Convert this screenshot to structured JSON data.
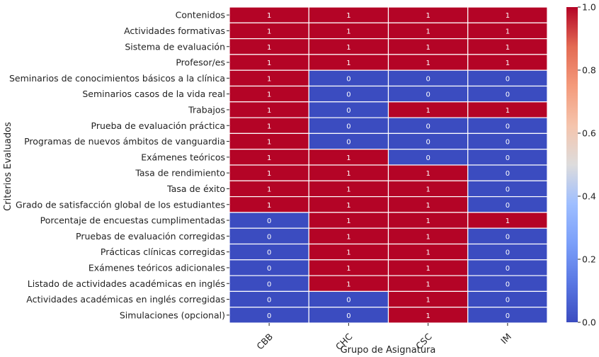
{
  "chart_data": {
    "type": "heatmap",
    "title": "",
    "xlabel": "Grupo de Asignatura",
    "ylabel": "Criterios Evaluados",
    "x_categories": [
      "CBB",
      "CHC",
      "CSC",
      "IM"
    ],
    "y_categories": [
      "Contenidos",
      "Actividades formativas",
      "Sistema de evaluación",
      "Profesor/es",
      "Seminarios de conocimientos básicos a la clínica",
      "Seminarios casos de la vida real",
      "Trabajos",
      "Prueba de evaluación práctica",
      "Programas de nuevos ámbitos de vanguardia",
      "Exámenes teóricos",
      "Tasa de rendimiento",
      "Tasa de éxito",
      "Grado de satisfacción global de los estudiantes",
      "Porcentaje de encuestas cumplimentadas",
      "Pruebas de evaluación corregidas",
      "Prácticas clínicas corregidas",
      "Exámenes teóricos adicionales",
      "Listado de actividades académicas en inglés",
      "Actividades académicas en inglés corregidas",
      "Simulaciones (opcional)"
    ],
    "values": [
      [
        1,
        1,
        1,
        1
      ],
      [
        1,
        1,
        1,
        1
      ],
      [
        1,
        1,
        1,
        1
      ],
      [
        1,
        1,
        1,
        1
      ],
      [
        1,
        0,
        0,
        0
      ],
      [
        1,
        0,
        0,
        0
      ],
      [
        1,
        0,
        1,
        1
      ],
      [
        1,
        0,
        0,
        0
      ],
      [
        1,
        0,
        0,
        0
      ],
      [
        1,
        1,
        0,
        0
      ],
      [
        1,
        1,
        1,
        0
      ],
      [
        1,
        1,
        1,
        0
      ],
      [
        1,
        1,
        1,
        0
      ],
      [
        0,
        1,
        1,
        1
      ],
      [
        0,
        1,
        1,
        0
      ],
      [
        0,
        1,
        1,
        0
      ],
      [
        0,
        1,
        1,
        0
      ],
      [
        0,
        1,
        1,
        0
      ],
      [
        0,
        0,
        1,
        0
      ],
      [
        0,
        0,
        1,
        0
      ]
    ],
    "colormap": "coolwarm",
    "color_low": "#3b4cc0",
    "color_high": "#b40426",
    "colorbar": {
      "range": [
        0.0,
        1.0
      ],
      "ticks": [
        "0.0",
        "0.2",
        "0.4",
        "0.6",
        "0.8",
        "1.0"
      ]
    },
    "annotations": true,
    "grid_line_color": "#ffffff"
  }
}
